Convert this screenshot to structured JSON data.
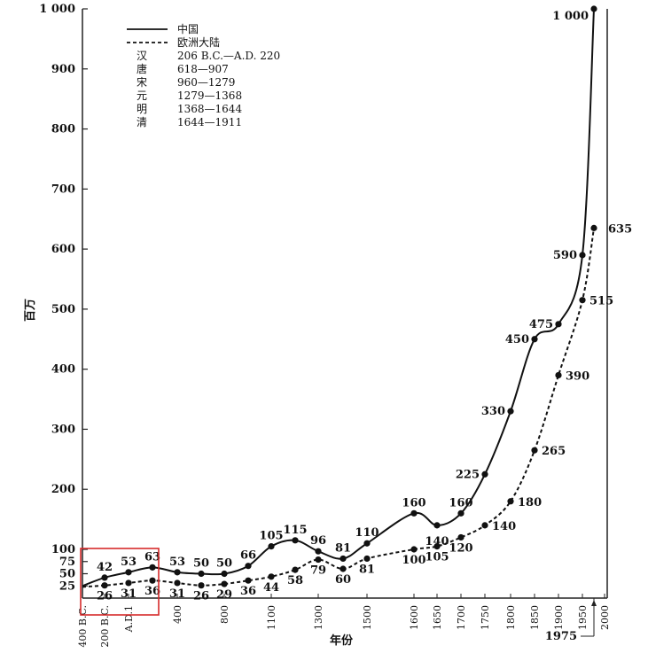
{
  "chart_data": {
    "type": "line",
    "ylabel": "百万",
    "xlabel": "年份",
    "ylim": [
      0,
      1000
    ],
    "y_ticks": [
      "25",
      "50",
      "75",
      "100",
      "200",
      "300",
      "400",
      "500",
      "600",
      "700",
      "800",
      "900",
      "1 000"
    ],
    "y_tick_values": [
      25,
      50,
      75,
      100,
      200,
      300,
      400,
      500,
      600,
      700,
      800,
      900,
      1000
    ],
    "x_ticks": [
      "400 B.C.",
      "200 B.C.",
      "A.D.1",
      "400",
      "800",
      "1100",
      "1300",
      "1500",
      "1600",
      "1650",
      "1700",
      "1750",
      "1800",
      "1850",
      "1900",
      "1950",
      "2000"
    ],
    "x_end_annotation": "1975",
    "legend": {
      "series_entries": [
        {
          "style": "solid",
          "label": "中国"
        },
        {
          "style": "dashed",
          "label": "欧洲大陆"
        }
      ],
      "dynasties": [
        {
          "name": "汉",
          "range": "206 B.C.—A.D. 220"
        },
        {
          "name": "唐",
          "range": "618—907"
        },
        {
          "name": "宋",
          "range": "960—1279"
        },
        {
          "name": "元",
          "range": "1279—1368"
        },
        {
          "name": "明",
          "range": "1368—1644"
        },
        {
          "name": "清",
          "range": "1644—1911"
        }
      ]
    },
    "series": [
      {
        "name": "中国",
        "style": "solid",
        "points": [
          {
            "x": "400 B.C.",
            "y": 25
          },
          {
            "x": "200 B.C.",
            "y": 42,
            "label": "42"
          },
          {
            "x": "A.D.1",
            "y": 53,
            "label": "53"
          },
          {
            "x": "200",
            "y": 63,
            "label": "63"
          },
          {
            "x": "400",
            "y": 53,
            "label": "53"
          },
          {
            "x": "600",
            "y": 50,
            "label": "50"
          },
          {
            "x": "800",
            "y": 50,
            "label": "50"
          },
          {
            "x": "1000",
            "y": 66,
            "label": "66"
          },
          {
            "x": "1100",
            "y": 105,
            "label": "105"
          },
          {
            "x": "1200",
            "y": 115,
            "label": "115"
          },
          {
            "x": "1300",
            "y": 96,
            "label": "96"
          },
          {
            "x": "1400",
            "y": 81,
            "label": "81"
          },
          {
            "x": "1500",
            "y": 110,
            "label": "110"
          },
          {
            "x": "1600",
            "y": 160,
            "label": "160"
          },
          {
            "x": "1650",
            "y": 140,
            "label": "140"
          },
          {
            "x": "1700",
            "y": 160,
            "label": "160"
          },
          {
            "x": "1750",
            "y": 225,
            "label": "225"
          },
          {
            "x": "1800",
            "y": 330,
            "label": "330"
          },
          {
            "x": "1850",
            "y": 450,
            "label": "450"
          },
          {
            "x": "1900",
            "y": 475,
            "label": "475"
          },
          {
            "x": "1950",
            "y": 590,
            "label": "590"
          },
          {
            "x": "1975",
            "y": 1000,
            "label": "1 000"
          }
        ]
      },
      {
        "name": "欧洲大陆",
        "style": "dashed",
        "points": [
          {
            "x": "400 B.C.",
            "y": 23
          },
          {
            "x": "200 B.C.",
            "y": 26,
            "label": "26"
          },
          {
            "x": "A.D.1",
            "y": 31,
            "label": "31"
          },
          {
            "x": "200",
            "y": 36,
            "label": "36"
          },
          {
            "x": "400",
            "y": 31,
            "label": "31"
          },
          {
            "x": "600",
            "y": 26,
            "label": "26"
          },
          {
            "x": "800",
            "y": 29,
            "label": "29"
          },
          {
            "x": "1000",
            "y": 36,
            "label": "36"
          },
          {
            "x": "1100",
            "y": 44,
            "label": "44"
          },
          {
            "x": "1200",
            "y": 58,
            "label": "58"
          },
          {
            "x": "1300",
            "y": 79,
            "label": "79"
          },
          {
            "x": "1400",
            "y": 60,
            "label": "60"
          },
          {
            "x": "1500",
            "y": 81,
            "label": "81"
          },
          {
            "x": "1600",
            "y": 100,
            "label": "100"
          },
          {
            "x": "1650",
            "y": 105,
            "label": "105"
          },
          {
            "x": "1700",
            "y": 120,
            "label": "120"
          },
          {
            "x": "1750",
            "y": 140,
            "label": "140"
          },
          {
            "x": "1800",
            "y": 180,
            "label": "180"
          },
          {
            "x": "1850",
            "y": 265,
            "label": "265"
          },
          {
            "x": "1900",
            "y": 390,
            "label": "390"
          },
          {
            "x": "1950",
            "y": 515,
            "label": "515"
          },
          {
            "x": "1975",
            "y": 635,
            "label": "635"
          }
        ]
      }
    ],
    "highlight_box": {
      "from": "400 B.C.",
      "to": "200",
      "color": "#d62b2b"
    },
    "grid": false
  }
}
